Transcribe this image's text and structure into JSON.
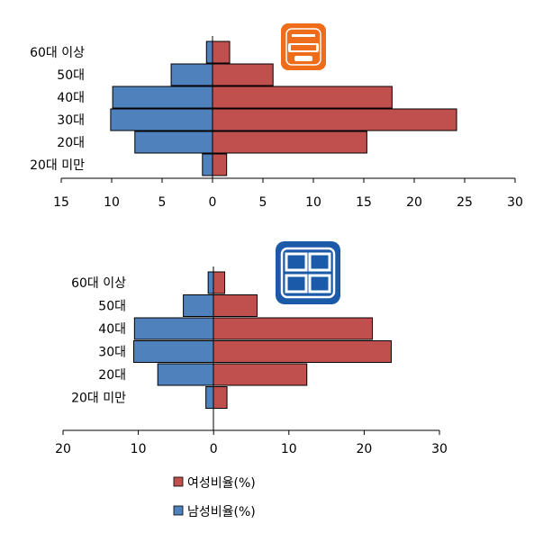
{
  "chart_data": [
    {
      "type": "bar",
      "orientation": "horizontal-pyramid",
      "categories": [
        "60대 이상",
        "50대",
        "40대",
        "30대",
        "20대",
        "20대 미만"
      ],
      "xlim_left": 15,
      "xlim_right": 30,
      "ticks": [
        "15",
        "10",
        "5",
        "0",
        "5",
        "10",
        "15",
        "20",
        "25",
        "30"
      ],
      "series": [
        {
          "name": "남성비율(%)",
          "color": "#4f81bd",
          "values": [
            0.6,
            4.1,
            9.9,
            10.1,
            7.7,
            1.0
          ]
        },
        {
          "name": "여성비율(%)",
          "color": "#c0504d",
          "values": [
            1.7,
            6.0,
            17.8,
            24.2,
            15.3,
            1.4
          ]
        }
      ],
      "logo": {
        "name": "배달의민족",
        "color": "#ef6c1a"
      }
    },
    {
      "type": "bar",
      "orientation": "horizontal-pyramid",
      "categories": [
        "60대 이상",
        "50대",
        "40대",
        "30대",
        "20대",
        "20대 미만"
      ],
      "xlim_left": 20,
      "xlim_right": 30,
      "ticks": [
        "20",
        "10",
        "0",
        "10",
        "20",
        "30"
      ],
      "series": [
        {
          "name": "남성비율(%)",
          "color": "#4f81bd",
          "values": [
            0.7,
            4.0,
            10.5,
            10.6,
            7.4,
            1.0
          ]
        },
        {
          "name": "여성비율(%)",
          "color": "#c0504d",
          "values": [
            1.5,
            5.8,
            21.1,
            23.6,
            12.4,
            1.8
          ]
        }
      ],
      "logo": {
        "name": "배달통",
        "color": "#1b5aa8"
      }
    }
  ],
  "legend": {
    "female": "여성비율(%)",
    "male": "남성비율(%)"
  }
}
